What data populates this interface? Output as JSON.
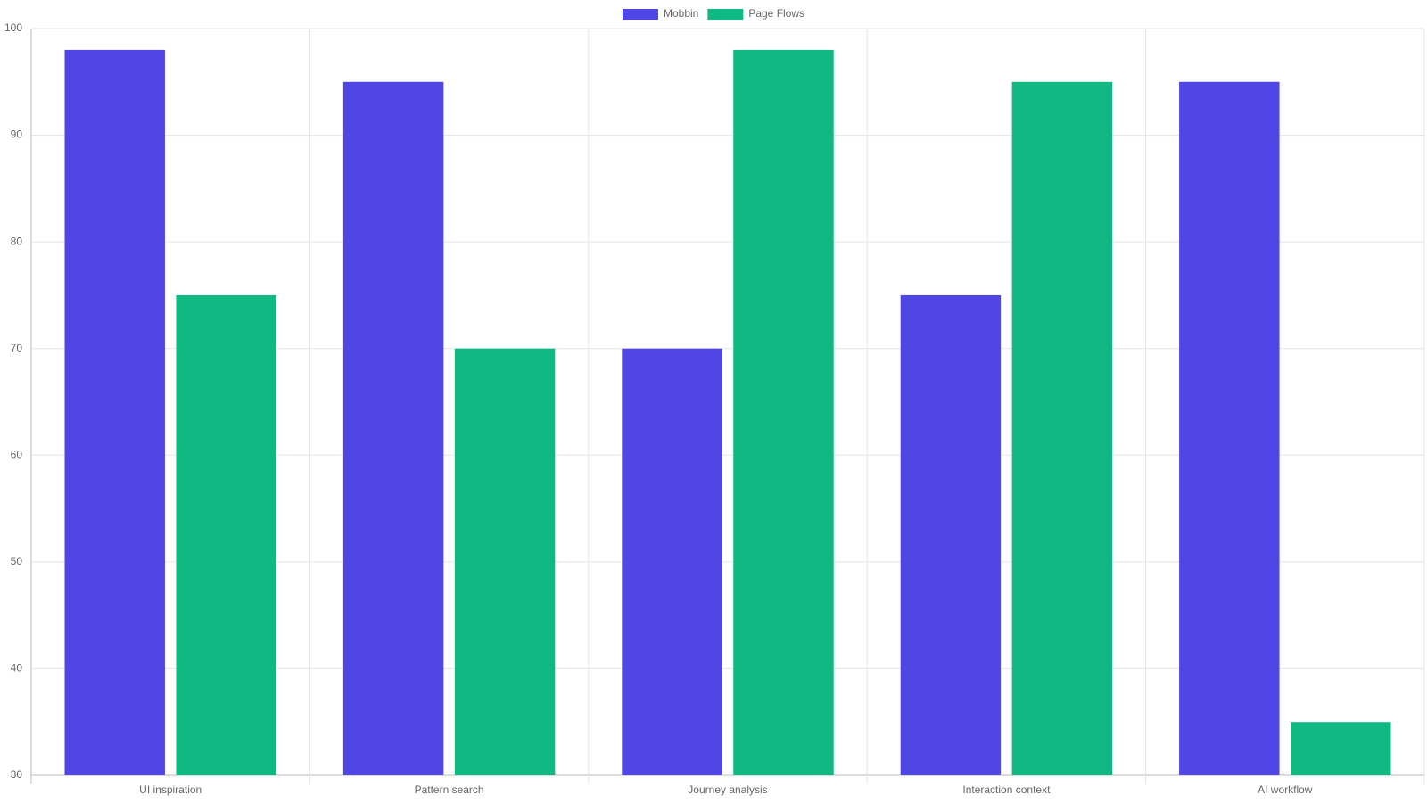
{
  "chart_data": {
    "type": "bar",
    "categories": [
      "UI inspiration",
      "Pattern search",
      "Journey analysis",
      "Interaction context",
      "AI workflow"
    ],
    "series": [
      {
        "name": "Mobbin",
        "color": "#4f46e5",
        "values": [
          98,
          95,
          70,
          75,
          95
        ]
      },
      {
        "name": "Page Flows",
        "color": "#10b981",
        "values": [
          75,
          70,
          98,
          95,
          35
        ]
      }
    ],
    "ylim": [
      30,
      100
    ],
    "yticks": [
      30,
      40,
      50,
      60,
      70,
      80,
      90,
      100
    ],
    "grid": true,
    "legend": "top"
  }
}
